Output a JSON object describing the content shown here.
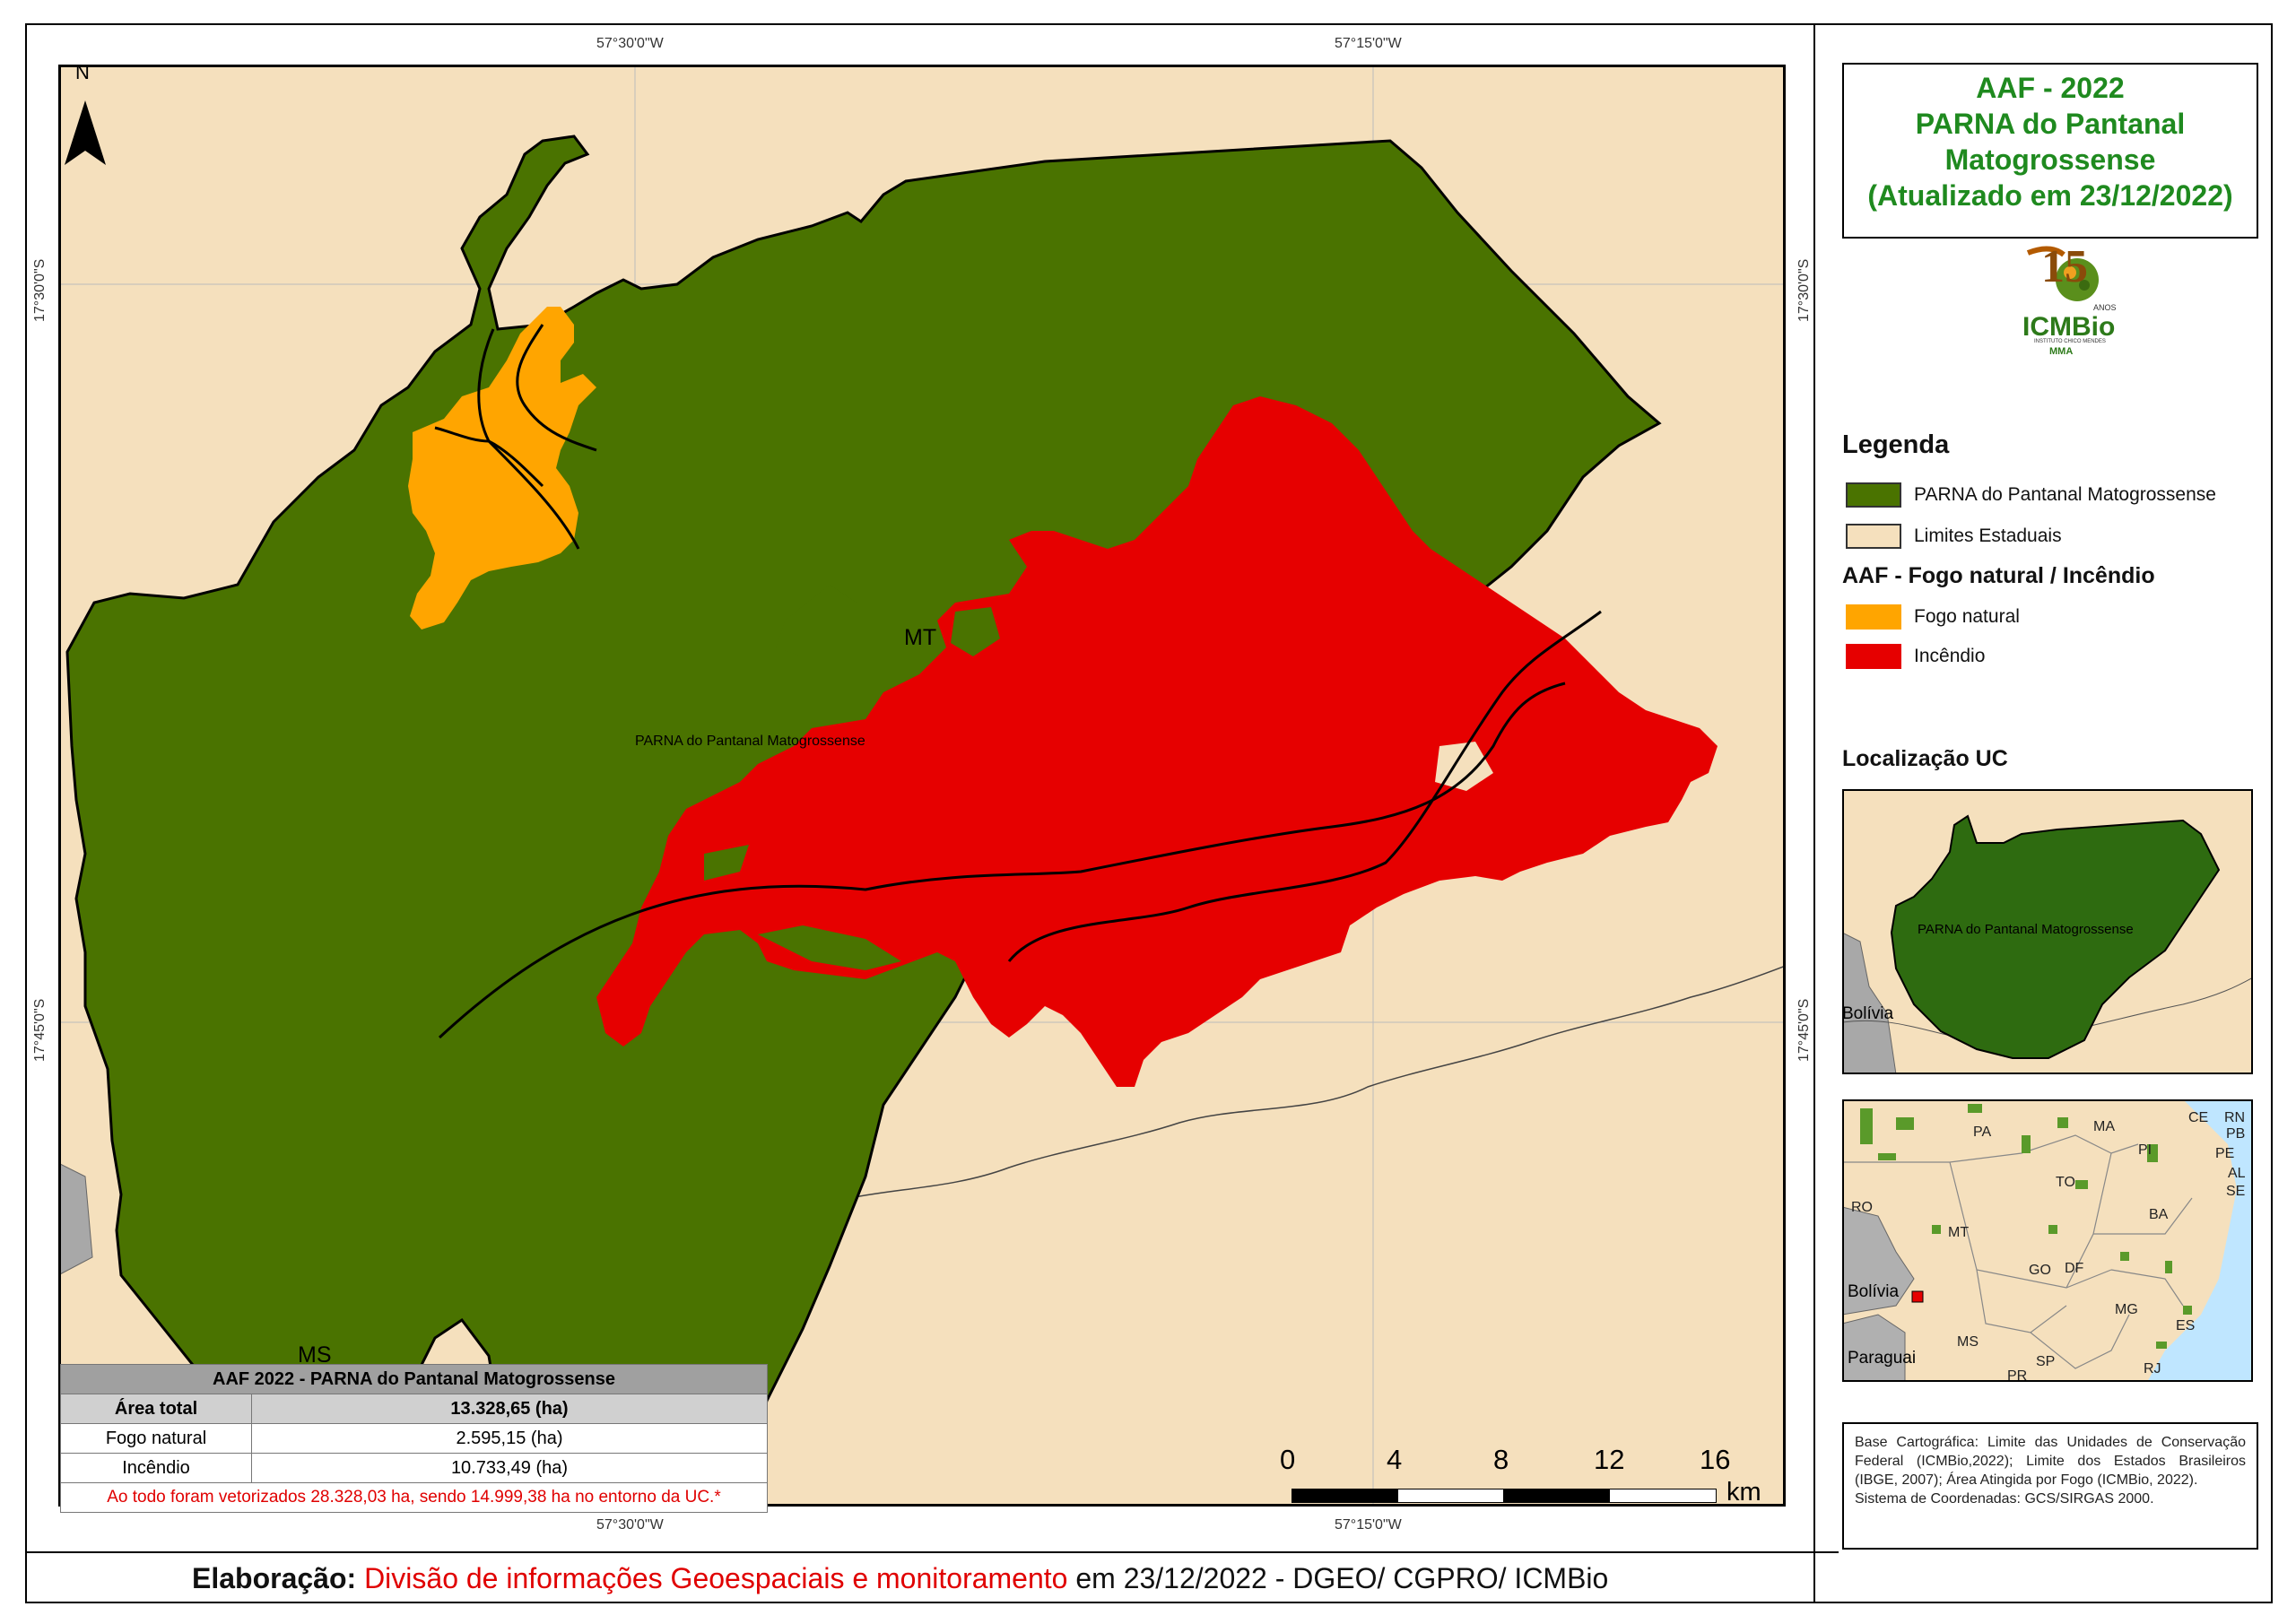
{
  "title": {
    "line1": "AAF - 2022",
    "line2": "PARNA do Pantanal",
    "line3": "Matogrossense",
    "line4": "(Atualizado em 23/12/2022)"
  },
  "logo": {
    "number": "15",
    "anos": "ANOS",
    "name": "ICMBio",
    "sub": "INSTITUTO CHICO MENDES",
    "mma": "MMA"
  },
  "colors": {
    "parna": "#4a7300",
    "states": "#f5e0bd",
    "natural_fire": "#ffa500",
    "wildfire": "#e60000",
    "title_green": "#1f8a1f"
  },
  "map": {
    "north": "N",
    "coords": {
      "top_left": "57°30'0\"W",
      "top_right": "57°15'0\"W",
      "bottom_left": "57°30'0\"W",
      "bottom_right": "57°15'0\"W",
      "left_top": "17°30'0\"S",
      "left_bottom": "17°45'0\"S",
      "right_top": "17°30'0\"S",
      "right_bottom": "17°45'0\"S"
    },
    "labels": {
      "mt": "MT",
      "ms": "MS",
      "parna": "PARNA do Pantanal Matogrossense"
    },
    "scale": {
      "ticks": [
        "0",
        "4",
        "8",
        "12",
        "16"
      ],
      "unit": "km"
    }
  },
  "stats_table": {
    "header": "AAF  2022 - PARNA do Pantanal Matogrossense",
    "rows": [
      {
        "label": "Área total",
        "value": "13.328,65 (ha)"
      },
      {
        "label": "Fogo natural",
        "value": "2.595,15 (ha)"
      },
      {
        "label": "Incêndio",
        "value": "10.733,49 (ha)"
      }
    ],
    "note": "Ao todo foram vetorizados 28.328,03 ha, sendo 14.999,38 ha no entorno da UC.*"
  },
  "legend": {
    "title": "Legenda",
    "items": [
      {
        "label": "PARNA do Pantanal Matogrossense",
        "color": "#4a7300"
      },
      {
        "label": "Limites Estaduais",
        "color": "#f5e0bd"
      }
    ],
    "subtitle": "AAF - Fogo natural / Incêndio",
    "fire_items": [
      {
        "label": "Fogo natural",
        "color": "#ffa500"
      },
      {
        "label": "Incêndio",
        "color": "#e60000"
      }
    ]
  },
  "location": {
    "title": "Localização UC",
    "inset1": {
      "parna": "PARNA do Pantanal Matogrossense",
      "bolivia": "Bolívia"
    },
    "inset2": {
      "states": [
        "MA",
        "CE",
        "RN",
        "PB",
        "PE",
        "AL",
        "SE",
        "PA",
        "PI",
        "TO",
        "BA",
        "RO",
        "MT",
        "GO",
        "DF",
        "MG",
        "ES",
        "MS",
        "SP",
        "RJ",
        "PR"
      ],
      "bolivia": "Bolívia",
      "paraguai": "Paraguai"
    }
  },
  "credits": {
    "base": "Base Cartográfica: Limite das Unidades de Conservação Federal (ICMBio,2022); Limite dos Estados Brasileiros (IBGE, 2007); Área Atingida por Fogo (ICMBio, 2022).",
    "system": "Sistema de Coordenadas: GCS/SIRGAS 2000."
  },
  "footer": {
    "label": "Elaboração:",
    "division": "Divisão de informações Geoespaciais e monitoramento",
    "rest": " em 23/12/2022 - DGEO/ CGPRO/ ICMBio"
  }
}
